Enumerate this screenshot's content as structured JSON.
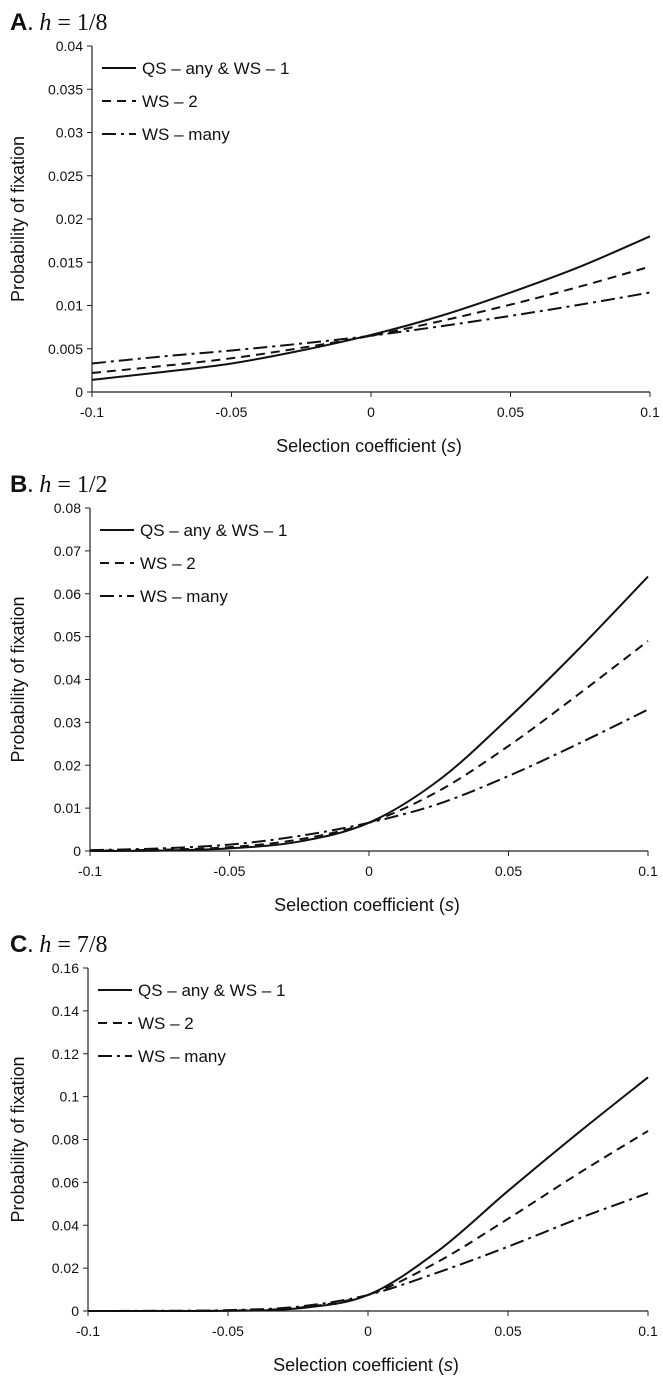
{
  "chart_data": [
    {
      "type": "line",
      "panel_letter": "A",
      "title_var": "h",
      "title_value": "= 1/8",
      "xlabel": "Selection coefficient",
      "xlabel_var": "s",
      "ylabel": "Probability of fixation",
      "xlim": [
        -0.1,
        0.1
      ],
      "ylim": [
        0,
        0.04
      ],
      "xticks": [
        "-0.1",
        "-0.05",
        "0",
        "0.05",
        "0.1"
      ],
      "yticks": [
        "0",
        "0.005",
        "0.01",
        "0.015",
        "0.02",
        "0.025",
        "0.03",
        "0.035",
        "0.04"
      ],
      "x": [
        -0.1,
        -0.075,
        -0.05,
        -0.025,
        0,
        0.025,
        0.05,
        0.075,
        0.1
      ],
      "series": [
        {
          "name": "QS – any & WS – 1",
          "style": "solid",
          "values": [
            0.0014,
            0.0023,
            0.0033,
            0.0048,
            0.0066,
            0.0088,
            0.0115,
            0.0145,
            0.018
          ]
        },
        {
          "name": "WS – 2",
          "style": "dashed",
          "values": [
            0.0022,
            0.003,
            0.0039,
            0.0051,
            0.0065,
            0.0082,
            0.0101,
            0.0122,
            0.0145
          ]
        },
        {
          "name": "WS – many",
          "style": "dashdot",
          "values": [
            0.0033,
            0.0041,
            0.0048,
            0.0056,
            0.0065,
            0.0076,
            0.0088,
            0.0101,
            0.0115
          ]
        }
      ],
      "legend_position": "top-left",
      "grid": false
    },
    {
      "type": "line",
      "panel_letter": "B",
      "title_var": "h",
      "title_value": "= 1/2",
      "xlabel": "Selection coefficient",
      "xlabel_var": "s",
      "ylabel": "Probability of fixation",
      "xlim": [
        -0.1,
        0.1
      ],
      "ylim": [
        0,
        0.08
      ],
      "xticks": [
        "-0.1",
        "-0.05",
        "0",
        "0.05",
        "0.1"
      ],
      "yticks": [
        "0",
        "0.01",
        "0.02",
        "0.03",
        "0.04",
        "0.05",
        "0.06",
        "0.07",
        "0.08"
      ],
      "x": [
        -0.1,
        -0.075,
        -0.05,
        -0.025,
        0,
        0.025,
        0.05,
        0.075,
        0.1
      ],
      "series": [
        {
          "name": "QS – any & WS – 1",
          "style": "solid",
          "values": [
            0.0,
            0.0001,
            0.0006,
            0.0022,
            0.0066,
            0.0165,
            0.031,
            0.047,
            0.064
          ]
        },
        {
          "name": "WS – 2",
          "style": "dashed",
          "values": [
            0.0001,
            0.0003,
            0.0009,
            0.0027,
            0.0066,
            0.014,
            0.0245,
            0.0365,
            0.049
          ]
        },
        {
          "name": "WS – many",
          "style": "dashdot",
          "values": [
            0.0002,
            0.0006,
            0.0015,
            0.0035,
            0.0066,
            0.011,
            0.0175,
            0.025,
            0.033
          ]
        }
      ],
      "legend_position": "top-left",
      "grid": false
    },
    {
      "type": "line",
      "panel_letter": "C",
      "title_var": "h",
      "title_value": "= 7/8",
      "xlabel": "Selection coefficient",
      "xlabel_var": "s",
      "ylabel": "Probability of fixation",
      "xlim": [
        -0.1,
        0.1
      ],
      "ylim": [
        0,
        0.16
      ],
      "xticks": [
        "-0.1",
        "-0.05",
        "0",
        "0.05",
        "0.1"
      ],
      "yticks": [
        "0",
        "0.02",
        "0.04",
        "0.06",
        "0.08",
        "0.1",
        "0.12",
        "0.14",
        "0.16"
      ],
      "x": [
        -0.1,
        -0.075,
        -0.05,
        -0.025,
        0,
        0.025,
        0.05,
        0.075,
        0.1
      ],
      "series": [
        {
          "name": "QS – any & WS – 1",
          "style": "solid",
          "values": [
            0.0,
            0.0,
            0.0001,
            0.0012,
            0.0075,
            0.028,
            0.056,
            0.083,
            0.109
          ]
        },
        {
          "name": "WS – 2",
          "style": "dashed",
          "values": [
            0.0,
            0.0,
            0.0002,
            0.0015,
            0.0075,
            0.023,
            0.043,
            0.064,
            0.084
          ]
        },
        {
          "name": "WS – many",
          "style": "dashdot",
          "values": [
            0.0,
            0.0001,
            0.0004,
            0.002,
            0.0075,
            0.018,
            0.03,
            0.043,
            0.055
          ]
        }
      ],
      "legend_position": "top-left",
      "grid": false
    }
  ]
}
